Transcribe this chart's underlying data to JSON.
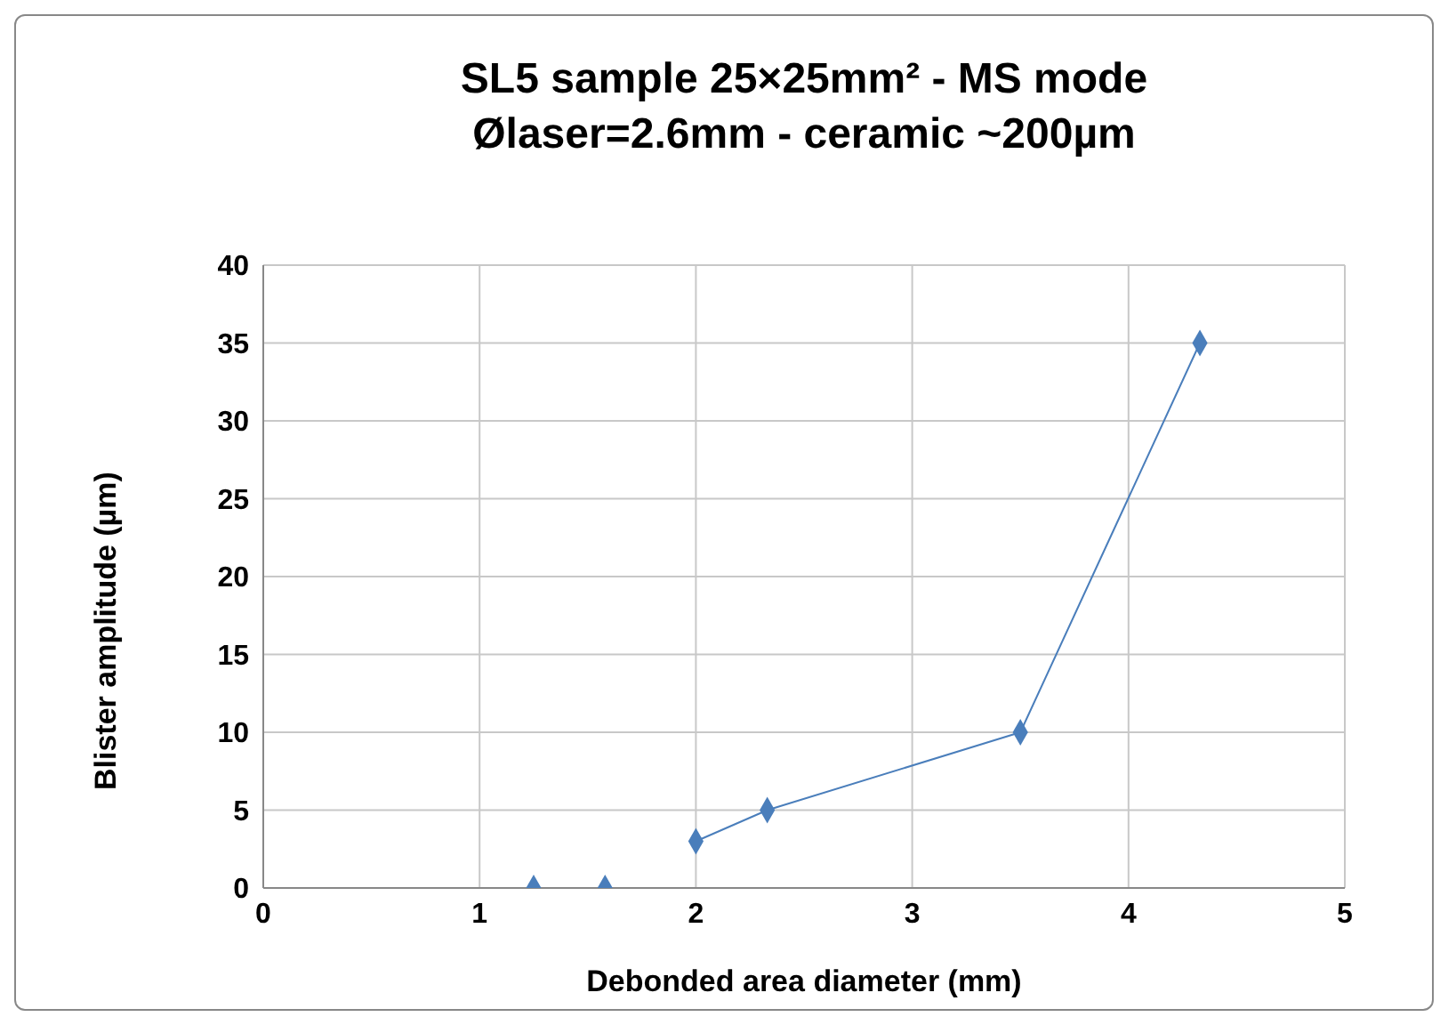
{
  "chart_data": {
    "type": "scatter",
    "title": "SL5 sample 25×25mm² - MS mode",
    "subtitle": "Ølaser=2.6mm - ceramic ~200µm",
    "xlabel": "Debonded area diameter (mm)",
    "ylabel": "Blister amplitude (µm)",
    "xlim": [
      0,
      5
    ],
    "xticks": [
      0,
      1,
      2,
      3,
      4,
      5
    ],
    "ylim": [
      0,
      40
    ],
    "yticks": [
      0,
      5,
      10,
      15,
      20,
      25,
      30,
      35,
      40
    ],
    "grid": true,
    "marker": "diamond",
    "series": [
      {
        "color": "#4a7ebb",
        "x": [
          1.25,
          1.58
        ],
        "values": [
          0,
          0
        ]
      },
      {
        "type": "line",
        "color": "#4a7ebb",
        "x": [
          2,
          2.33,
          3.5,
          4.33
        ],
        "values": [
          3,
          5,
          10,
          35
        ]
      }
    ]
  }
}
